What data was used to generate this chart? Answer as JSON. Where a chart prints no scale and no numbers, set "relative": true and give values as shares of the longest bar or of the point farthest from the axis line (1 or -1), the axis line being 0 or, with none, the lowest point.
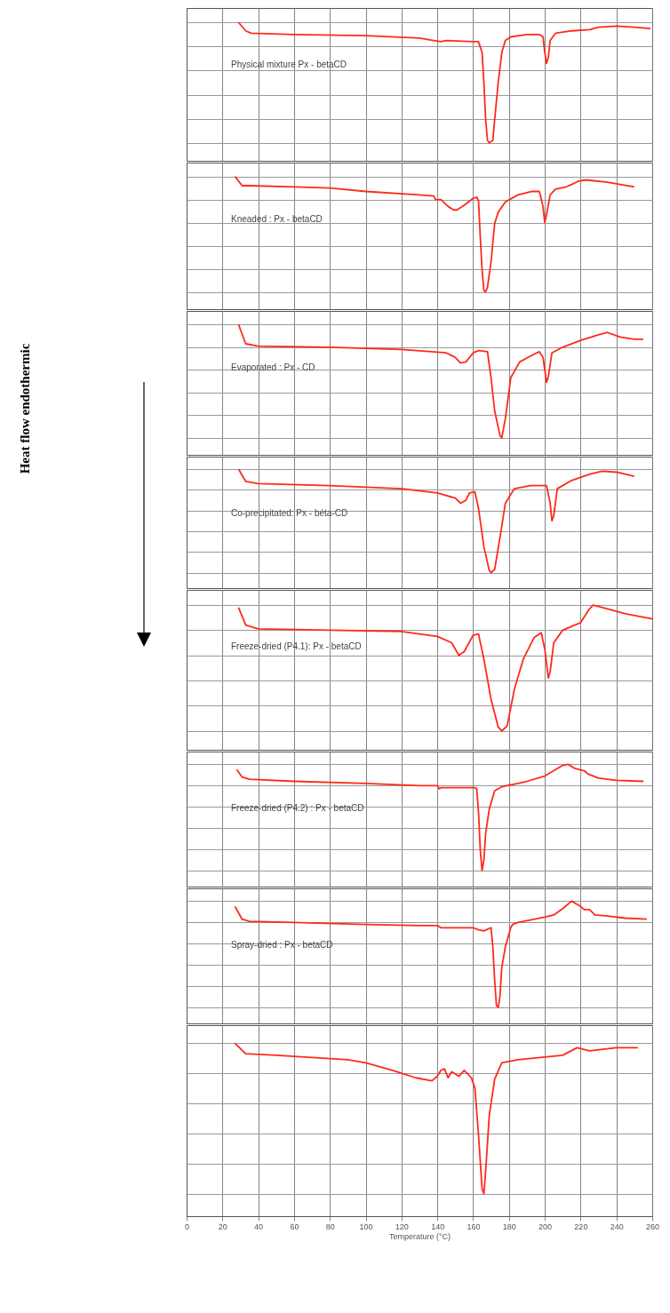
{
  "chart_data": [
    {
      "type": "line",
      "title": "Physical mixture Px - betaCD",
      "relative": true,
      "grid": true,
      "tick_labels": false,
      "xlim": [
        0,
        260
      ],
      "xticks": [
        0,
        20,
        40,
        60,
        80,
        100,
        120,
        140,
        160,
        180,
        200,
        220,
        240,
        260
      ],
      "x": [
        29,
        33,
        36,
        60,
        100,
        130,
        138,
        142,
        145,
        160,
        163,
        165,
        166,
        167,
        168,
        169,
        171,
        172,
        174,
        176,
        178,
        181,
        190,
        197,
        199,
        200,
        201,
        202,
        203,
        206,
        215,
        225,
        230,
        240,
        250,
        259
      ],
      "series": [
        {
          "color": "#ff2a1a",
          "values": [
            1,
            0.93,
            0.91,
            0.9,
            0.89,
            0.87,
            0.85,
            0.84,
            0.85,
            0.84,
            0.84,
            0.75,
            0.5,
            0.19,
            0.02,
            0,
            0.02,
            0.19,
            0.5,
            0.75,
            0.85,
            0.88,
            0.9,
            0.9,
            0.88,
            0.75,
            0.66,
            0.71,
            0.85,
            0.91,
            0.93,
            0.94,
            0.96,
            0.97,
            0.96,
            0.95
          ]
        }
      ]
    },
    {
      "type": "line",
      "title": "Kneaded : Px - betaCD",
      "relative": true,
      "grid": true,
      "tick_labels": false,
      "xlim": [
        0,
        260
      ],
      "xticks": [
        0,
        20,
        40,
        60,
        80,
        100,
        120,
        140,
        160,
        180,
        200,
        220,
        240,
        260
      ],
      "x": [
        27,
        31,
        35,
        60,
        80,
        100,
        130,
        138,
        139,
        142,
        146,
        149,
        151,
        155,
        160,
        162,
        163,
        164,
        165,
        166,
        167,
        168,
        170,
        172,
        174,
        178,
        185,
        193,
        197,
        199,
        200,
        201,
        203,
        206,
        212,
        215,
        219,
        223,
        235,
        250
      ],
      "series": [
        {
          "color": "#ff2a1a",
          "values": [
            1,
            0.92,
            0.92,
            0.91,
            0.9,
            0.87,
            0.84,
            0.83,
            0.8,
            0.8,
            0.74,
            0.71,
            0.71,
            0.75,
            0.81,
            0.82,
            0.79,
            0.47,
            0.19,
            0.01,
            0,
            0.04,
            0.26,
            0.59,
            0.69,
            0.78,
            0.84,
            0.87,
            0.87,
            0.74,
            0.6,
            0.67,
            0.84,
            0.89,
            0.91,
            0.93,
            0.96,
            0.97,
            0.95,
            0.91
          ]
        }
      ]
    },
    {
      "type": "line",
      "title": "Evaporated : Px - CD",
      "ylabel": "Heat flow endothermic",
      "relative": true,
      "grid": true,
      "tick_labels": false,
      "xlim": [
        0,
        260
      ],
      "xticks": [
        0,
        20,
        40,
        60,
        80,
        100,
        120,
        140,
        160,
        180,
        200,
        220,
        240,
        260
      ],
      "x": [
        29,
        33,
        40,
        80,
        120,
        145,
        150,
        153,
        156,
        160,
        163,
        168,
        170,
        172,
        175,
        176,
        178,
        181,
        186,
        193,
        197,
        199,
        201,
        202,
        204,
        210,
        220,
        230,
        235,
        242,
        250,
        255
      ],
      "series": [
        {
          "color": "#ff2a1a",
          "values": [
            1,
            0.83,
            0.81,
            0.8,
            0.78,
            0.75,
            0.71,
            0.66,
            0.67,
            0.75,
            0.77,
            0.76,
            0.53,
            0.24,
            0.02,
            0,
            0.17,
            0.53,
            0.67,
            0.73,
            0.76,
            0.71,
            0.49,
            0.54,
            0.75,
            0.8,
            0.86,
            0.91,
            0.93,
            0.89,
            0.87,
            0.87
          ]
        }
      ]
    },
    {
      "type": "line",
      "title": "Co-precipitated: Px - béta-CD",
      "relative": true,
      "grid": true,
      "tick_labels": false,
      "xlim": [
        0,
        260
      ],
      "xticks": [
        0,
        20,
        40,
        60,
        80,
        100,
        120,
        140,
        160,
        180,
        200,
        220,
        240,
        260
      ],
      "x": [
        29,
        33,
        40,
        80,
        120,
        140,
        150,
        153,
        156,
        158,
        161,
        163,
        166,
        169,
        170,
        172,
        175,
        178,
        183,
        192,
        201,
        203,
        204,
        205,
        207,
        215,
        225,
        232,
        240,
        250
      ],
      "series": [
        {
          "color": "#ff2a1a",
          "values": [
            1,
            0.88,
            0.86,
            0.84,
            0.81,
            0.77,
            0.72,
            0.67,
            0.7,
            0.77,
            0.78,
            0.62,
            0.25,
            0.02,
            0,
            0.03,
            0.34,
            0.67,
            0.81,
            0.84,
            0.84,
            0.67,
            0.5,
            0.55,
            0.81,
            0.89,
            0.95,
            0.98,
            0.97,
            0.93
          ]
        }
      ]
    },
    {
      "type": "line",
      "title": "Freeze-dried (P4.1): Px - betaCD",
      "relative": true,
      "grid": true,
      "tick_labels": false,
      "xlim": [
        0,
        260
      ],
      "xticks": [
        0,
        20,
        40,
        60,
        80,
        100,
        120,
        140,
        160,
        180,
        200,
        220,
        240,
        260
      ],
      "x": [
        29,
        33,
        40,
        80,
        120,
        140,
        148,
        152,
        155,
        160,
        163,
        166,
        170,
        174,
        176,
        179,
        183,
        188,
        194,
        198,
        200,
        202,
        203,
        205,
        210,
        220,
        225,
        227,
        235,
        245,
        260
      ],
      "series": [
        {
          "color": "#ff2a1a",
          "values": [
            0.98,
            0.84,
            0.81,
            0.8,
            0.79,
            0.75,
            0.7,
            0.6,
            0.63,
            0.76,
            0.77,
            0.57,
            0.25,
            0.03,
            0,
            0.04,
            0.33,
            0.57,
            0.74,
            0.78,
            0.65,
            0.42,
            0.47,
            0.7,
            0.8,
            0.86,
            0.97,
            1,
            0.97,
            0.93,
            0.89
          ]
        }
      ]
    },
    {
      "type": "line",
      "title": "Freeze-dried (P4.2) : Px - betaCD",
      "relative": true,
      "grid": true,
      "tick_labels": false,
      "xlim": [
        0,
        260
      ],
      "xticks": [
        0,
        20,
        40,
        60,
        80,
        100,
        120,
        140,
        160,
        180,
        200,
        220,
        240,
        260
      ],
      "x": [
        28,
        31,
        35,
        60,
        100,
        130,
        140,
        141,
        142,
        160,
        161,
        162,
        163,
        164,
        165,
        166,
        167,
        169,
        172,
        176,
        185,
        190,
        200,
        205,
        210,
        213,
        217,
        222,
        224,
        230,
        240,
        255
      ],
      "series": [
        {
          "color": "#ff2a1a",
          "values": [
            0.95,
            0.88,
            0.86,
            0.84,
            0.82,
            0.8,
            0.8,
            0.77,
            0.78,
            0.78,
            0.78,
            0.77,
            0.55,
            0.19,
            0,
            0.1,
            0.35,
            0.58,
            0.75,
            0.79,
            0.82,
            0.84,
            0.89,
            0.94,
            0.99,
            1,
            0.96,
            0.94,
            0.91,
            0.87,
            0.85,
            0.84
          ]
        }
      ]
    },
    {
      "type": "line",
      "title": "Spray-dried : Px - betaCD",
      "relative": true,
      "grid": true,
      "tick_labels": false,
      "xlim": [
        0,
        260
      ],
      "xticks": [
        0,
        20,
        40,
        60,
        80,
        100,
        120,
        140,
        160,
        180,
        200,
        220,
        240,
        260
      ],
      "x": [
        27,
        31,
        35,
        60,
        100,
        130,
        140,
        142,
        160,
        163,
        166,
        170,
        171,
        172,
        173,
        174,
        175,
        176,
        178,
        181,
        182,
        185,
        200,
        205,
        210,
        215,
        220,
        222,
        225,
        228,
        235,
        245,
        257
      ],
      "series": [
        {
          "color": "#ff2a1a",
          "values": [
            0.95,
            0.83,
            0.81,
            0.8,
            0.78,
            0.77,
            0.77,
            0.75,
            0.75,
            0.73,
            0.72,
            0.75,
            0.57,
            0.26,
            0.02,
            0,
            0.11,
            0.38,
            0.57,
            0.75,
            0.78,
            0.8,
            0.85,
            0.87,
            0.93,
            1,
            0.95,
            0.92,
            0.92,
            0.87,
            0.86,
            0.84,
            0.83
          ]
        }
      ]
    },
    {
      "type": "line",
      "xlabel": "Temperature (°C)",
      "relative": true,
      "grid": true,
      "tick_labels": "x",
      "xlim": [
        0,
        260
      ],
      "xticks": [
        0,
        20,
        40,
        60,
        80,
        100,
        120,
        140,
        160,
        180,
        200,
        220,
        240,
        260
      ],
      "x": [
        27,
        33,
        50,
        90,
        100,
        115,
        128,
        137,
        140,
        142,
        144,
        146,
        148,
        152,
        155,
        159,
        161,
        163,
        165,
        166,
        167,
        169,
        172,
        176,
        185,
        210,
        218,
        225,
        240,
        252
      ],
      "series": [
        {
          "color": "#ff2a1a",
          "values": [
            1,
            0.93,
            0.92,
            0.89,
            0.87,
            0.82,
            0.77,
            0.75,
            0.78,
            0.82,
            0.83,
            0.77,
            0.81,
            0.78,
            0.82,
            0.77,
            0.7,
            0.39,
            0.03,
            0,
            0.15,
            0.52,
            0.76,
            0.87,
            0.89,
            0.92,
            0.97,
            0.95,
            0.97,
            0.97
          ]
        }
      ]
    }
  ]
}
